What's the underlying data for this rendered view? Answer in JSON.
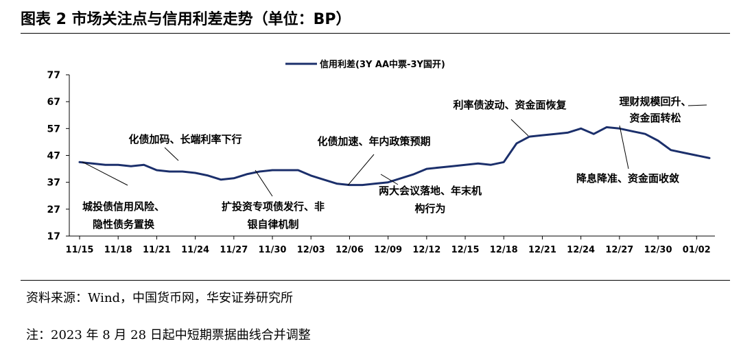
{
  "figure": {
    "title": "图表 2 市场关注点与信用利差走势（单位：BP）",
    "source": "资料来源：Wind，中国货币网，华安证券研究所",
    "note": "注：2023 年 8 月 28 日起中短期票据曲线合并调整"
  },
  "colors": {
    "series": "#1b2f6b",
    "axis": "#000000",
    "text": "#000000"
  },
  "chart_data": {
    "type": "line",
    "title": "",
    "xlabel": "",
    "ylabel": "",
    "ylim": [
      17,
      77
    ],
    "yticks": [
      17,
      27,
      37,
      47,
      57,
      67,
      77
    ],
    "grid": false,
    "legend_position": "top-center",
    "xtick_labels": [
      "11/15",
      "11/18",
      "11/21",
      "11/24",
      "11/27",
      "11/30",
      "12/03",
      "12/06",
      "12/09",
      "12/12",
      "12/15",
      "12/18",
      "12/21",
      "12/24",
      "12/27",
      "12/30",
      "01/02"
    ],
    "series": [
      {
        "name": "信用利差(3Y AA中票-3Y国开)",
        "x": [
          "11/15",
          "11/16",
          "11/17",
          "11/18",
          "11/19",
          "11/20",
          "11/21",
          "11/22",
          "11/23",
          "11/24",
          "11/25",
          "11/26",
          "11/27",
          "11/28",
          "11/29",
          "11/30",
          "12/01",
          "12/02",
          "12/03",
          "12/04",
          "12/05",
          "12/06",
          "12/07",
          "12/08",
          "12/09",
          "12/10",
          "12/11",
          "12/12",
          "12/13",
          "12/14",
          "12/15",
          "12/16",
          "12/17",
          "12/18",
          "12/19",
          "12/20",
          "12/21",
          "12/22",
          "12/23",
          "12/24",
          "12/25",
          "12/26",
          "12/27",
          "12/28",
          "12/29",
          "12/30",
          "12/31",
          "01/01",
          "01/02",
          "01/03"
        ],
        "values": [
          44.5,
          44,
          43.5,
          43.5,
          43,
          43.5,
          41.5,
          41,
          41,
          40.5,
          39.5,
          38,
          38.5,
          40,
          41,
          41.5,
          41.5,
          41.5,
          39.5,
          38,
          36.5,
          36,
          36,
          36.5,
          37,
          38.5,
          40,
          42,
          42.5,
          43,
          43.5,
          44,
          43.5,
          44.5,
          51.5,
          54,
          54.5,
          55,
          55.5,
          57,
          55,
          57.5,
          57,
          56,
          55,
          52.5,
          49,
          48,
          47,
          46
        ]
      }
    ],
    "annotations": [
      {
        "lines": [
          "化债加码、长端利率下行"
        ]
      },
      {
        "lines": [
          "城投债信用风险、",
          "隐性债务置换"
        ]
      },
      {
        "lines": [
          "扩投资专项债发行、非",
          "银自律机制"
        ]
      },
      {
        "lines": [
          "化债加速、年内政策预期"
        ]
      },
      {
        "lines": [
          "两大会议落地、年末机",
          "构行为"
        ]
      },
      {
        "lines": [
          "利率债波动、资金面恢复"
        ]
      },
      {
        "lines": [
          "理财规模回升、",
          "资金面转松"
        ]
      },
      {
        "lines": [
          "降息降准、资金面收敛"
        ]
      }
    ]
  }
}
